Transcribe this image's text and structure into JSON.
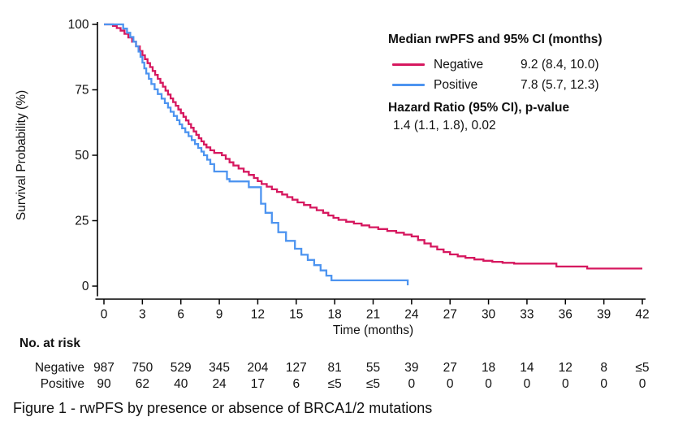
{
  "figure": {
    "caption": "Figure 1 - rwPFS by presence or absence of BRCA1/2 mutations"
  },
  "legend": {
    "title": "Median rwPFS and 95% CI (months)",
    "entries": [
      {
        "label": "Negative",
        "median": "9.2 (8.4, 10.0)",
        "color": "#D6185F"
      },
      {
        "label": "Positive",
        "median": "7.8 (5.7, 12.3)",
        "color": "#4D94F0"
      }
    ],
    "hazard_title": "Hazard Ratio (95% CI), p-value",
    "hazard_value": "1.4 (1.1, 1.8), 0.02"
  },
  "risk_table": {
    "heading": "No. at risk",
    "rows": [
      {
        "label": "Negative",
        "values": [
          "987",
          "750",
          "529",
          "345",
          "204",
          "127",
          "81",
          "55",
          "39",
          "27",
          "18",
          "14",
          "12",
          "8",
          "≤5"
        ]
      },
      {
        "label": "Positive",
        "values": [
          "90",
          "62",
          "40",
          "24",
          "17",
          "6",
          "≤5",
          "≤5",
          "0",
          "0",
          "0",
          "0",
          "0",
          "0",
          "0"
        ]
      }
    ]
  },
  "chart_data": {
    "type": "line",
    "subtype": "kaplan-meier-step",
    "title": "",
    "xlabel": "Time (months)",
    "ylabel": "Survival Probability (%)",
    "xlim": [
      0,
      42
    ],
    "ylim": [
      0,
      100
    ],
    "xticks": [
      0,
      3,
      6,
      9,
      12,
      15,
      18,
      21,
      24,
      27,
      30,
      33,
      36,
      39,
      42
    ],
    "yticks": [
      0,
      25,
      50,
      75,
      100
    ],
    "grid": false,
    "legend_position": "top-right",
    "axis_color": "#000000",
    "series": [
      {
        "name": "Negative",
        "color": "#D6185F",
        "points": [
          [
            0,
            100
          ],
          [
            0.7,
            99.4
          ],
          [
            1.0,
            98.6
          ],
          [
            1.3,
            97.6
          ],
          [
            1.6,
            96.4
          ],
          [
            1.9,
            95.0
          ],
          [
            2.2,
            93.4
          ],
          [
            2.5,
            91.6
          ],
          [
            2.8,
            89.8
          ],
          [
            3.0,
            88.2
          ],
          [
            3.2,
            86.7
          ],
          [
            3.4,
            85.2
          ],
          [
            3.6,
            83.7
          ],
          [
            3.8,
            82.2
          ],
          [
            4.0,
            80.7
          ],
          [
            4.2,
            79.2
          ],
          [
            4.4,
            77.7
          ],
          [
            4.6,
            76.2
          ],
          [
            4.8,
            74.7
          ],
          [
            5.0,
            73.2
          ],
          [
            5.2,
            71.7
          ],
          [
            5.4,
            70.3
          ],
          [
            5.6,
            68.9
          ],
          [
            5.8,
            67.5
          ],
          [
            6.0,
            66.1
          ],
          [
            6.2,
            64.7
          ],
          [
            6.4,
            63.3
          ],
          [
            6.6,
            61.9
          ],
          [
            6.8,
            60.5
          ],
          [
            7.0,
            59.1
          ],
          [
            7.2,
            57.8
          ],
          [
            7.4,
            56.5
          ],
          [
            7.6,
            55.3
          ],
          [
            7.8,
            54.1
          ],
          [
            8.0,
            53.0
          ],
          [
            8.3,
            51.9
          ],
          [
            8.6,
            50.9
          ],
          [
            9.2,
            50.0
          ],
          [
            9.5,
            48.6
          ],
          [
            9.8,
            47.3
          ],
          [
            10.1,
            46.1
          ],
          [
            10.5,
            44.9
          ],
          [
            10.9,
            43.7
          ],
          [
            11.3,
            42.5
          ],
          [
            11.7,
            41.3
          ],
          [
            12.0,
            40.1
          ],
          [
            12.3,
            39.0
          ],
          [
            12.7,
            38.0
          ],
          [
            13.1,
            37.0
          ],
          [
            13.5,
            36.0
          ],
          [
            13.9,
            35.0
          ],
          [
            14.3,
            34.0
          ],
          [
            14.7,
            33.0
          ],
          [
            15.1,
            32.0
          ],
          [
            15.6,
            31.0
          ],
          [
            16.1,
            30.0
          ],
          [
            16.6,
            29.0
          ],
          [
            17.1,
            28.0
          ],
          [
            17.5,
            27.0
          ],
          [
            17.9,
            26.1
          ],
          [
            18.3,
            25.3
          ],
          [
            18.9,
            24.6
          ],
          [
            19.5,
            23.9
          ],
          [
            20.1,
            23.2
          ],
          [
            20.7,
            22.5
          ],
          [
            21.4,
            21.8
          ],
          [
            22.1,
            21.1
          ],
          [
            22.8,
            20.4
          ],
          [
            23.4,
            19.7
          ],
          [
            24.0,
            19.0
          ],
          [
            24.5,
            17.6
          ],
          [
            25.0,
            16.3
          ],
          [
            25.5,
            15.1
          ],
          [
            26.0,
            14.0
          ],
          [
            26.5,
            13.0
          ],
          [
            27.0,
            12.1
          ],
          [
            27.6,
            11.4
          ],
          [
            28.2,
            10.8
          ],
          [
            28.9,
            10.2
          ],
          [
            29.6,
            9.7
          ],
          [
            30.3,
            9.3
          ],
          [
            31.1,
            8.9
          ],
          [
            32.0,
            8.6
          ],
          [
            35.3,
            7.5
          ],
          [
            37.7,
            6.7
          ],
          [
            42,
            6.7
          ]
        ]
      },
      {
        "name": "Positive",
        "color": "#4D94F0",
        "points": [
          [
            0,
            100
          ],
          [
            1.5,
            98.4
          ],
          [
            1.8,
            96.8
          ],
          [
            2.05,
            95.2
          ],
          [
            2.3,
            93.4
          ],
          [
            2.5,
            91.6
          ],
          [
            2.7,
            89.6
          ],
          [
            2.85,
            87.6
          ],
          [
            3.0,
            85.4
          ],
          [
            3.15,
            83.2
          ],
          [
            3.3,
            81.2
          ],
          [
            3.5,
            79.2
          ],
          [
            3.7,
            77.2
          ],
          [
            3.95,
            75.2
          ],
          [
            4.2,
            73.4
          ],
          [
            4.5,
            71.6
          ],
          [
            4.75,
            69.9
          ],
          [
            5.0,
            68.2
          ],
          [
            5.2,
            66.6
          ],
          [
            5.45,
            65.0
          ],
          [
            5.7,
            63.4
          ],
          [
            5.9,
            61.8
          ],
          [
            6.1,
            60.3
          ],
          [
            6.35,
            58.8
          ],
          [
            6.6,
            57.3
          ],
          [
            6.85,
            55.8
          ],
          [
            7.1,
            54.3
          ],
          [
            7.35,
            52.8
          ],
          [
            7.6,
            51.4
          ],
          [
            7.8,
            50.0
          ],
          [
            8.05,
            48.3
          ],
          [
            8.3,
            46.6
          ],
          [
            8.6,
            43.8
          ],
          [
            9.6,
            40.9
          ],
          [
            9.8,
            40.0
          ],
          [
            11.3,
            37.8
          ],
          [
            12.25,
            31.5
          ],
          [
            12.6,
            28.0
          ],
          [
            13.1,
            24.2
          ],
          [
            13.6,
            20.6
          ],
          [
            14.2,
            17.3
          ],
          [
            14.9,
            14.3
          ],
          [
            15.4,
            12.0
          ],
          [
            15.9,
            10.0
          ],
          [
            16.4,
            8.0
          ],
          [
            16.9,
            6.0
          ],
          [
            17.35,
            4.0
          ],
          [
            17.75,
            2.2
          ],
          [
            23.7,
            0.3
          ]
        ]
      }
    ]
  }
}
